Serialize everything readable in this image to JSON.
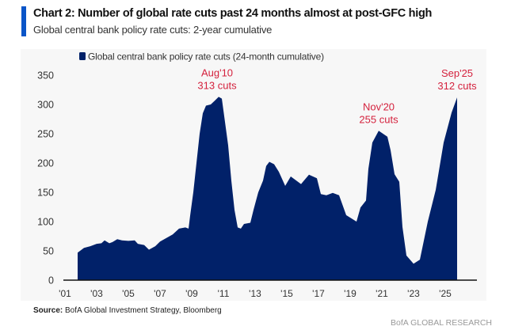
{
  "header": {
    "title": "Chart 2: Number of global rate cuts past 24 months almost at post-GFC high",
    "subtitle": "Global central bank policy rate cuts: 2-year cumulative"
  },
  "colors": {
    "accent": "#0a55c8",
    "series": "#012169",
    "annotation": "#d4213d",
    "panel": "#f7f7f7"
  },
  "chart_data": {
    "type": "area",
    "title": "Number of global rate cuts past 24 months almost at post-GFC high",
    "xlabel": "",
    "ylabel": "",
    "ylim": [
      0,
      350
    ],
    "xlim": [
      2001,
      2027
    ],
    "yticks": [
      0,
      50,
      100,
      150,
      200,
      250,
      300,
      350
    ],
    "xticks": [
      {
        "v": 2001,
        "label": "'01"
      },
      {
        "v": 2003,
        "label": "'03"
      },
      {
        "v": 2005,
        "label": "'05"
      },
      {
        "v": 2007,
        "label": "'07"
      },
      {
        "v": 2009,
        "label": "'09"
      },
      {
        "v": 2011,
        "label": "'11"
      },
      {
        "v": 2013,
        "label": "'13"
      },
      {
        "v": 2015,
        "label": "'15"
      },
      {
        "v": 2017,
        "label": "'17"
      },
      {
        "v": 2019,
        "label": "'19"
      },
      {
        "v": 2021,
        "label": "'21"
      },
      {
        "v": 2023,
        "label": "'23"
      },
      {
        "v": 2025,
        "label": "'25"
      }
    ],
    "legend": {
      "label": "Global central bank policy rate cuts (24-month cumulative)",
      "position": "top-left"
    },
    "grid": false,
    "series": [
      {
        "name": "Global central bank policy rate cuts (24-month cumulative)",
        "x": [
          2001.8,
          2002.2,
          2002.6,
          2003.0,
          2003.3,
          2003.5,
          2003.8,
          2004.0,
          2004.3,
          2004.6,
          2005.0,
          2005.4,
          2005.6,
          2006.0,
          2006.3,
          2006.7,
          2007.0,
          2007.4,
          2007.8,
          2008.2,
          2008.6,
          2008.8,
          2008.9,
          2009.1,
          2009.3,
          2009.5,
          2009.7,
          2009.9,
          2010.2,
          2010.4,
          2010.7,
          2010.9,
          2011.0,
          2011.3,
          2011.5,
          2011.7,
          2011.9,
          2012.1,
          2012.3,
          2012.7,
          2012.9,
          2013.2,
          2013.5,
          2013.7,
          2013.9,
          2014.2,
          2014.5,
          2014.9,
          2015.25,
          2015.9,
          2016.4,
          2016.9,
          2017.15,
          2017.5,
          2017.9,
          2018.3,
          2018.75,
          2019.4,
          2019.65,
          2020.0,
          2020.15,
          2020.4,
          2020.8,
          2021.35,
          2021.55,
          2021.8,
          2022.1,
          2022.3,
          2022.55,
          2023.0,
          2023.4,
          2023.9,
          2024.4,
          2024.9,
          2025.4,
          2025.75
        ],
        "values": [
          47,
          55,
          58,
          62,
          63,
          68,
          63,
          65,
          70,
          68,
          67,
          68,
          62,
          60,
          52,
          58,
          66,
          72,
          78,
          88,
          90,
          88,
          110,
          150,
          200,
          250,
          285,
          298,
          300,
          305,
          313,
          310,
          290,
          230,
          170,
          120,
          90,
          88,
          96,
          98,
          120,
          150,
          170,
          195,
          202,
          198,
          185,
          161,
          177,
          164,
          180,
          174,
          147,
          145,
          149,
          145,
          111,
          100,
          124,
          136,
          190,
          235,
          255,
          245,
          222,
          181,
          168,
          91,
          42,
          28,
          35,
          100,
          154,
          235,
          286,
          312
        ]
      }
    ],
    "annotations": [
      {
        "x": 2010.6,
        "y": 313,
        "line1": "Aug'10",
        "line2": "313 cuts"
      },
      {
        "x": 2020.8,
        "y": 255,
        "line1": "Nov'20",
        "line2": "255 cuts"
      },
      {
        "x": 2025.75,
        "y": 312,
        "line1": "Sep'25",
        "line2": "312 cuts"
      }
    ]
  },
  "footer": {
    "source_label": "Source:",
    "source_text": " BofA Global Investment Strategy, Bloomberg",
    "brand": "BofA GLOBAL RESEARCH"
  }
}
